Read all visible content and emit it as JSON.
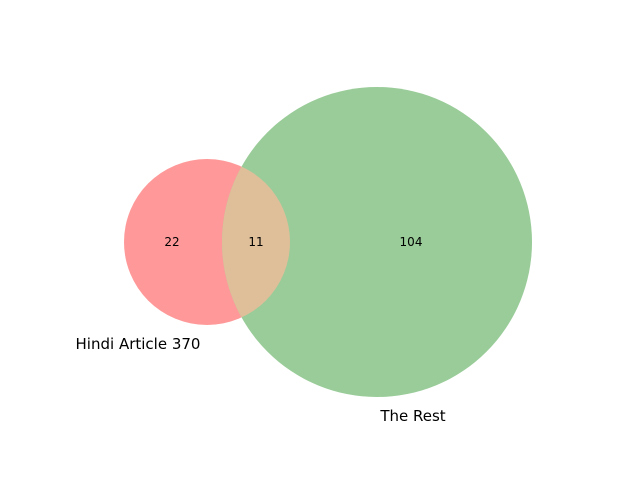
{
  "chart_data": {
    "type": "venn",
    "sets": [
      {
        "name": "Hindi Article 370",
        "color": "#ff0000",
        "only": "22"
      },
      {
        "name": "The Rest",
        "color": "#008000",
        "only": "104"
      }
    ],
    "intersection": {
      "value": "11",
      "color": "#c0c08a"
    }
  }
}
